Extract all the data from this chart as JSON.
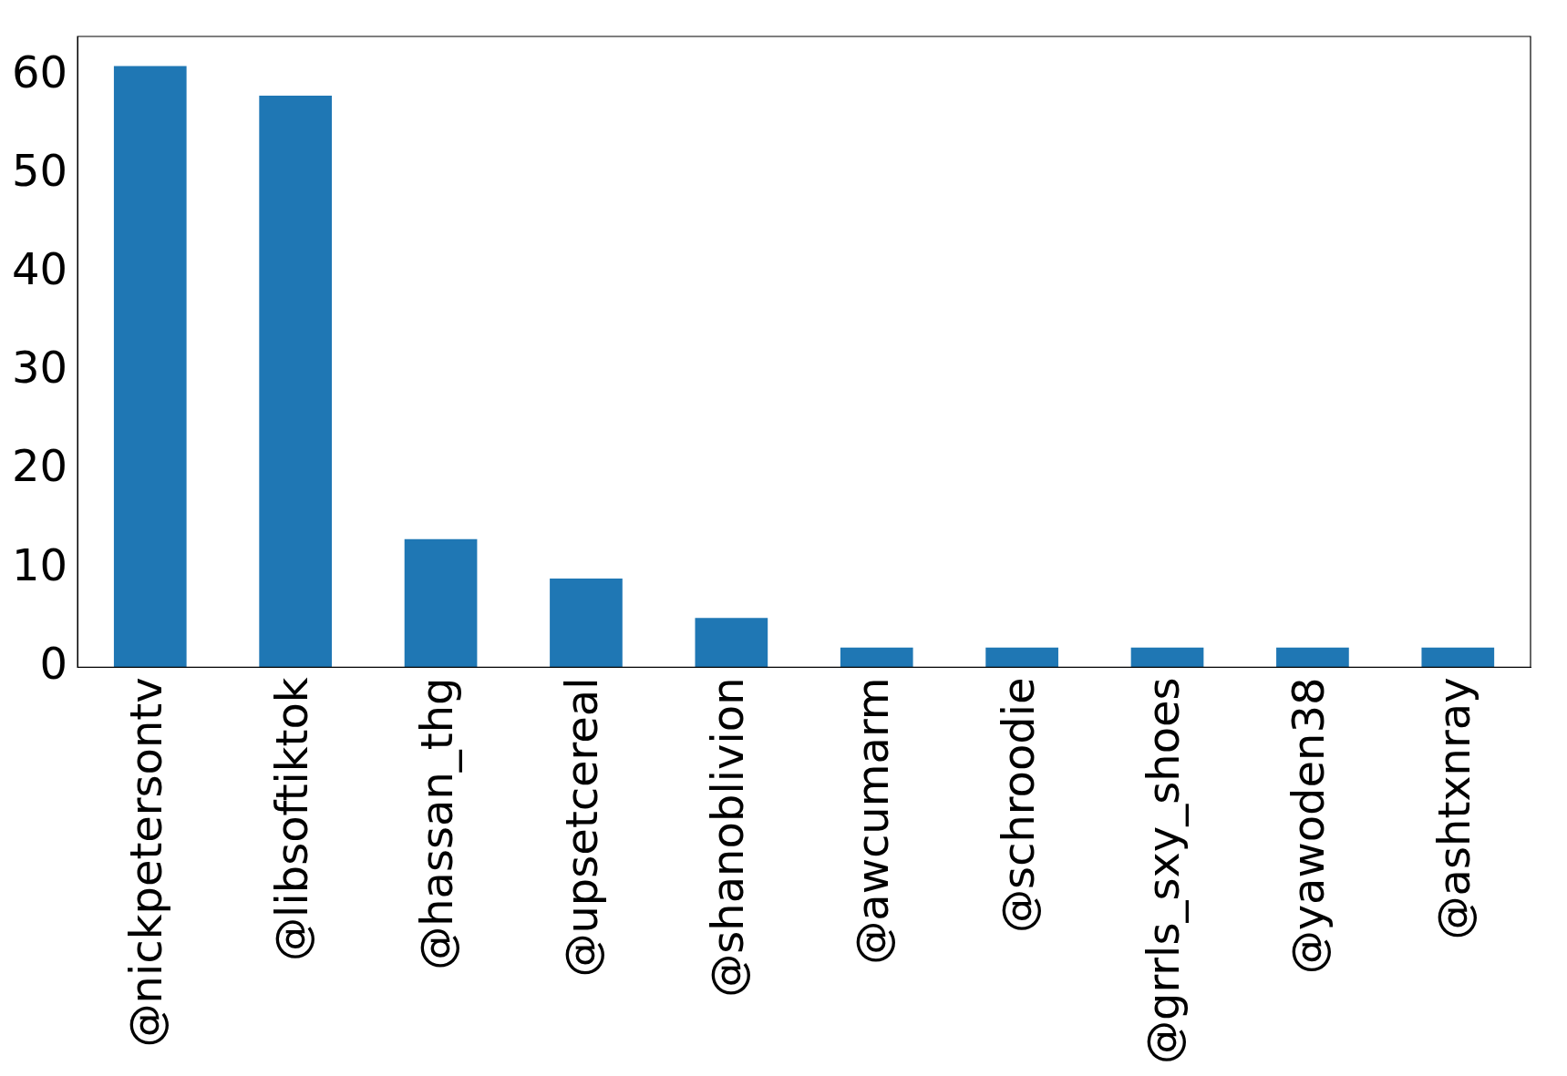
{
  "chart_data": {
    "type": "bar",
    "categories": [
      "@nickpetersontv",
      "@libsoftiktok",
      "@hassan_thg",
      "@upsetcereal",
      "@shanoblivion",
      "@awcumarm",
      "@schroodie",
      "@grrls_sxy_shoes",
      "@yawoden38",
      "@ashtxnray"
    ],
    "values": [
      61,
      58,
      13,
      9,
      5,
      2,
      2,
      2,
      2,
      2
    ],
    "color": "#1f77b4",
    "ylim": [
      0,
      64
    ],
    "yticks": [
      0,
      10,
      20,
      30,
      40,
      50,
      60
    ],
    "grid": false,
    "legend": false
  }
}
